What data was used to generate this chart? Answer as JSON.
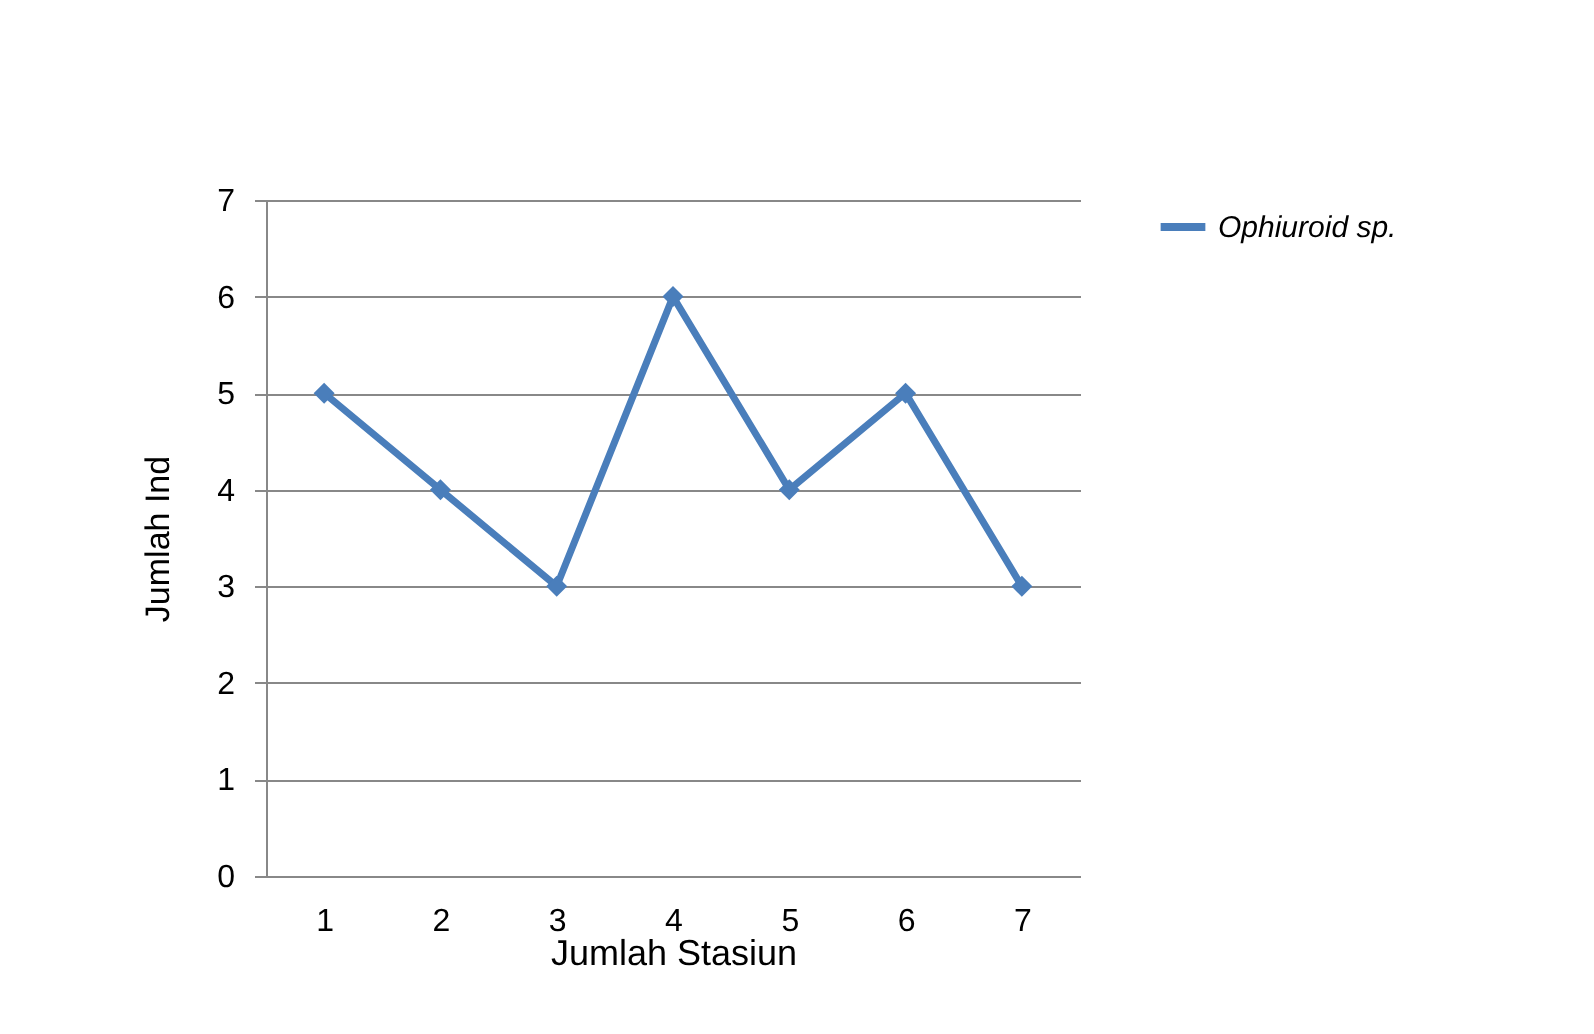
{
  "chart_data": {
    "type": "line",
    "xlabel": "Jumlah Stasiun",
    "ylabel": "Jumlah Ind",
    "categories": [
      "1",
      "2",
      "3",
      "4",
      "5",
      "6",
      "7"
    ],
    "series": [
      {
        "name": "Ophiuroid sp.",
        "color": "#4a7ebb",
        "values": [
          5,
          4,
          3,
          6,
          4,
          5,
          3
        ]
      }
    ],
    "ylim": [
      0,
      7
    ],
    "yticks": [
      0,
      1,
      2,
      3,
      4,
      5,
      6,
      7
    ],
    "grid": "y",
    "legend": "right",
    "marker": "diamond",
    "line_style": "solid"
  }
}
